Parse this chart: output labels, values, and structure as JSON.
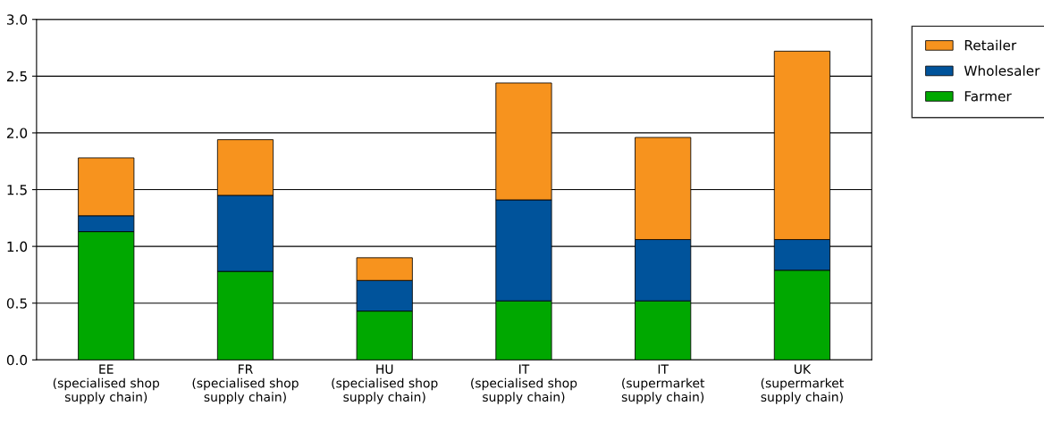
{
  "chart_data": {
    "type": "bar",
    "stacked": true,
    "categories": [
      "EE\n(specialised shop\nsupply chain)",
      "FR\n(specialised shop\nsupply chain)",
      "HU\n(specialised shop\nsupply chain)",
      "IT\n(specialised shop\nsupply chain)",
      "IT\n(supermarket\nsupply chain)",
      "UK\n(supermarket\nsupply chain)"
    ],
    "series": [
      {
        "name": "Farmer",
        "color": "#00a800",
        "values": [
          1.13,
          0.78,
          0.43,
          0.52,
          0.52,
          0.79
        ]
      },
      {
        "name": "Wholesaler",
        "color": "#00539b",
        "values": [
          0.14,
          0.67,
          0.27,
          0.89,
          0.54,
          0.27
        ]
      },
      {
        "name": "Retailer",
        "color": "#f7931e",
        "values": [
          0.51,
          0.49,
          0.2,
          1.03,
          0.9,
          1.66
        ]
      }
    ],
    "ylim": [
      0,
      3.0
    ],
    "yticks": [
      {
        "value": 0,
        "label": "0.0"
      },
      {
        "value": 0.5,
        "label": "0.5"
      },
      {
        "value": 1,
        "label": "1.0"
      },
      {
        "value": 1.5,
        "label": "1.5"
      },
      {
        "value": 2,
        "label": "2.0"
      },
      {
        "value": 2.5,
        "label": "2.5"
      },
      {
        "value": 3,
        "label": "3.0"
      }
    ],
    "grid": "y",
    "legend": "right"
  }
}
